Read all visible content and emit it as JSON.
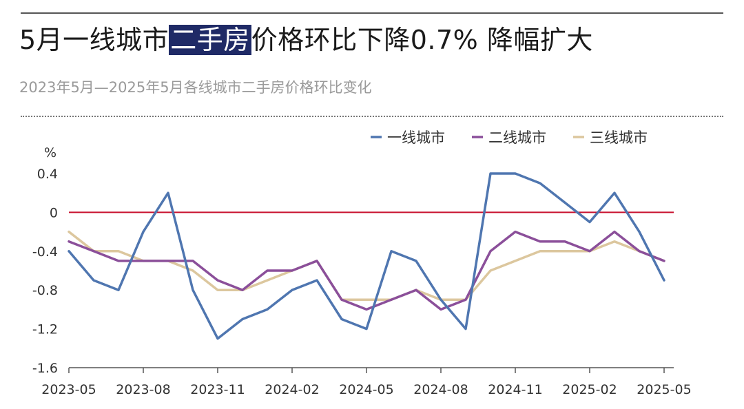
{
  "header": {
    "title_pre": "5月一线城市",
    "title_highlight": "二手房",
    "title_post": "价格环比下降0.7% 降幅扩大",
    "subtitle": "2023年5月—2025年5月各线城市二手房价格环比变化"
  },
  "chart_data": {
    "type": "line",
    "title": "5月一线城市二手房价格环比下降0.7% 降幅扩大",
    "subtitle": "2023年5月—2025年5月各线城市二手房价格环比变化",
    "ylabel": "%",
    "ylim": [
      -1.6,
      0.4
    ],
    "yticks": [
      0.4,
      0,
      -0.4,
      -0.8,
      -1.2,
      -1.6
    ],
    "ytick_labels": [
      "0.4",
      "0",
      "-0.4",
      "-0.8",
      "-1.2",
      "-1.6"
    ],
    "x": [
      "2023-05",
      "2023-06",
      "2023-07",
      "2023-08",
      "2023-09",
      "2023-10",
      "2023-11",
      "2023-12",
      "2024-01",
      "2024-02",
      "2024-03",
      "2024-04",
      "2024-05",
      "2024-06",
      "2024-07",
      "2024-08",
      "2024-09",
      "2024-10",
      "2024-11",
      "2024-12",
      "2025-01",
      "2025-02",
      "2025-03",
      "2025-04",
      "2025-05"
    ],
    "xtick_labels": [
      "2023-05",
      "2023-08",
      "2023-11",
      "2024-02",
      "2024-05",
      "2024-08",
      "2024-11",
      "2025-02",
      "2025-05"
    ],
    "zero_line": {
      "value": 0,
      "color": "#c8102e"
    },
    "legend_position": "top-right",
    "grid": false,
    "series": [
      {
        "name": "一线城市",
        "color": "#4f76b0",
        "values": [
          -0.4,
          -0.7,
          -0.8,
          -0.2,
          0.2,
          -0.8,
          -1.3,
          -1.1,
          -1.0,
          -0.8,
          -0.7,
          -1.1,
          -1.2,
          -0.4,
          -0.5,
          -0.9,
          -1.2,
          0.4,
          0.4,
          0.3,
          0.1,
          -0.1,
          0.2,
          -0.2,
          -0.7
        ]
      },
      {
        "name": "二线城市",
        "color": "#8b4f9a",
        "values": [
          -0.3,
          -0.4,
          -0.5,
          -0.5,
          -0.5,
          -0.5,
          -0.7,
          -0.8,
          -0.6,
          -0.6,
          -0.5,
          -0.9,
          -1.0,
          -0.9,
          -0.8,
          -1.0,
          -0.9,
          -0.4,
          -0.2,
          -0.3,
          -0.3,
          -0.4,
          -0.2,
          -0.4,
          -0.5
        ]
      },
      {
        "name": "三线城市",
        "color": "#dcc79e",
        "values": [
          -0.2,
          -0.4,
          -0.4,
          -0.5,
          -0.5,
          -0.6,
          -0.8,
          -0.8,
          -0.7,
          -0.6,
          -0.5,
          -0.9,
          -0.9,
          -0.9,
          -0.8,
          -0.9,
          -0.9,
          -0.6,
          -0.5,
          -0.4,
          -0.4,
          -0.4,
          -0.3,
          -0.4,
          -0.5
        ]
      }
    ]
  }
}
